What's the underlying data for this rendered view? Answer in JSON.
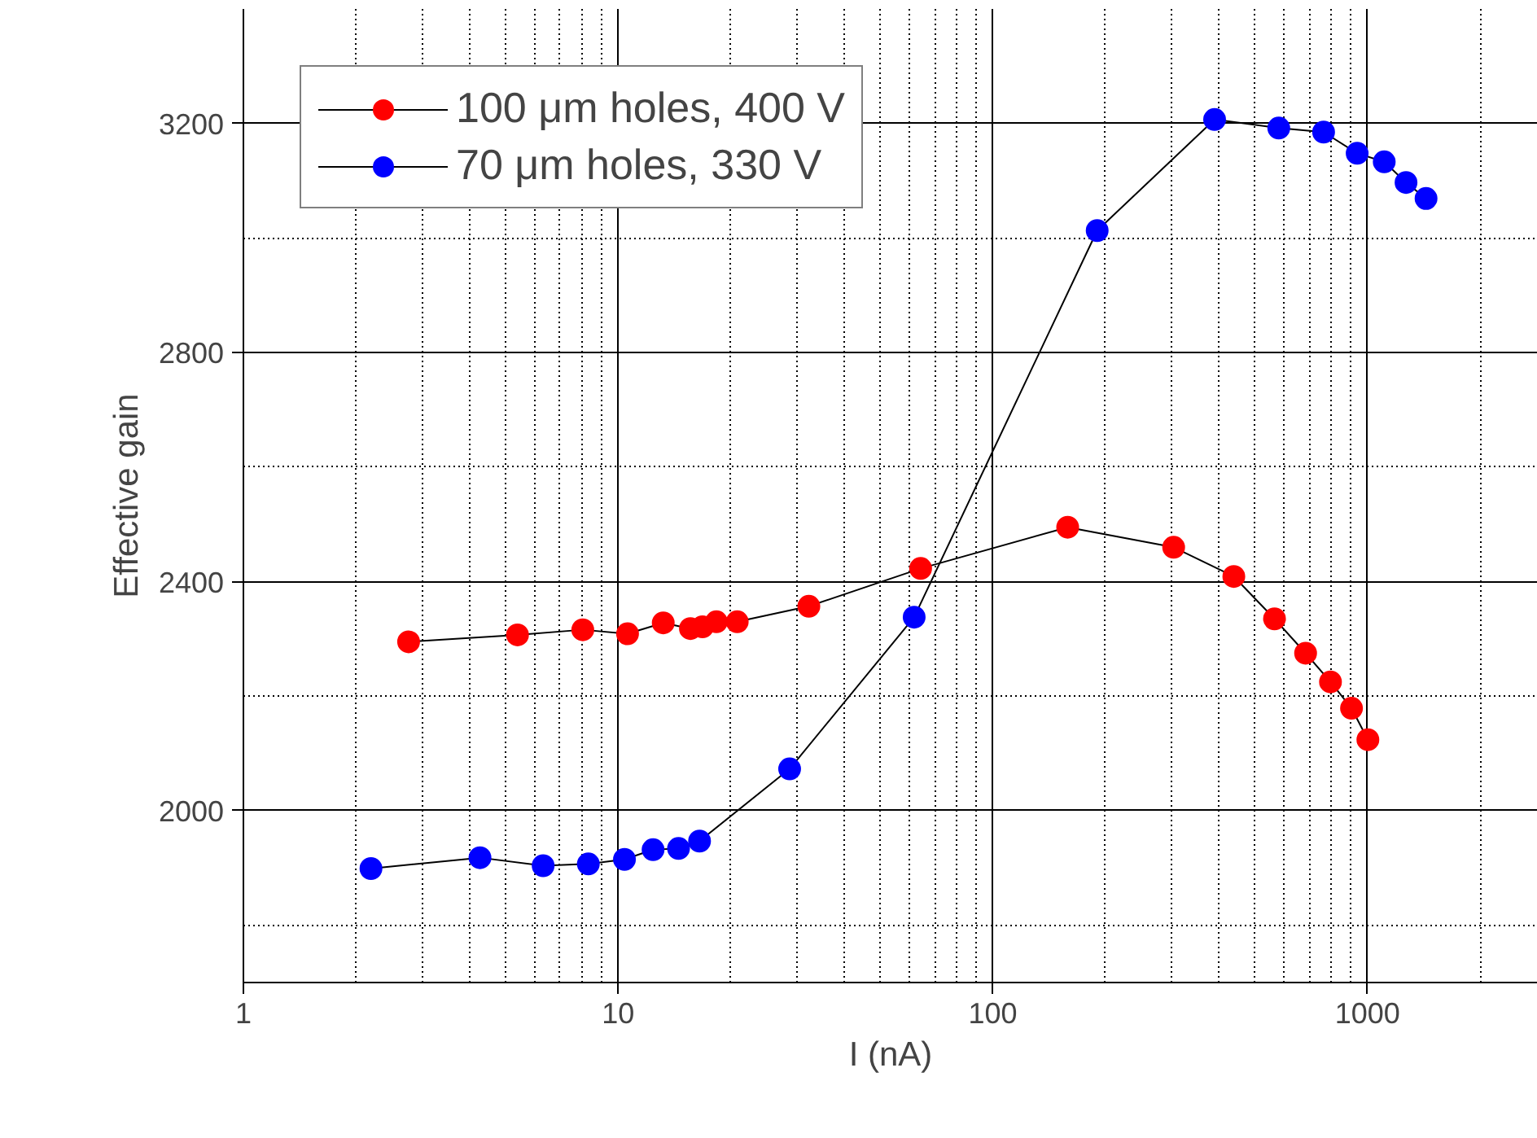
{
  "chart_data": {
    "type": "line",
    "xlabel": "I (nA)",
    "ylabel": "Effective gain",
    "log": "x",
    "xlim": [
      1,
      2850
    ],
    "ylim": [
      1700,
      3400
    ],
    "xticks": [
      1,
      {
        "value": 2,
        "label": null
      },
      {
        "value": 3,
        "label": null
      },
      {
        "value": 4,
        "label": null
      },
      {
        "value": 5,
        "label": null
      },
      {
        "value": 6,
        "label": null
      },
      {
        "value": 7,
        "label": null
      },
      {
        "value": 8,
        "label": null
      },
      {
        "value": 9,
        "label": null
      },
      10,
      {
        "value": 20,
        "label": null
      },
      {
        "value": 30,
        "label": null
      },
      {
        "value": 40,
        "label": null
      },
      {
        "value": 50,
        "label": null
      },
      {
        "value": 60,
        "label": null
      },
      {
        "value": 70,
        "label": null
      },
      {
        "value": 80,
        "label": null
      },
      {
        "value": 90,
        "label": null
      },
      100,
      {
        "value": 200,
        "label": null
      },
      {
        "value": 300,
        "label": null
      },
      {
        "value": 400,
        "label": null
      },
      {
        "value": 500,
        "label": null
      },
      {
        "value": 600,
        "label": null
      },
      {
        "value": 700,
        "label": null
      },
      {
        "value": 800,
        "label": null
      },
      {
        "value": 900,
        "label": null
      },
      1000,
      {
        "value": 2000,
        "label": null
      }
    ],
    "yticks": [
      {
        "value": 1800,
        "label": null
      },
      2000,
      {
        "value": 2200,
        "label": null
      },
      2400,
      {
        "value": 2600,
        "label": null
      },
      2800,
      {
        "value": 3000,
        "label": null
      },
      3200
    ],
    "grid": true,
    "legend": "top left",
    "marker": "circle",
    "line_style": "solid",
    "series": [
      {
        "name": "100 μm holes, 400 V",
        "color": "#ff0000",
        "x": [
          2.76,
          5.39,
          8.05,
          10.6,
          13.2,
          15.6,
          16.8,
          18.3,
          20.8,
          32.3,
          64.2,
          158.5,
          304,
          440,
          565,
          684,
          797,
          907,
          1003
        ],
        "values": [
          2295,
          2307,
          2316,
          2309,
          2328,
          2318,
          2321,
          2330,
          2330,
          2357,
          2423,
          2495,
          2460,
          2409,
          2335,
          2275,
          2225,
          2179,
          2124
        ]
      },
      {
        "name": "70 μm holes, 330 V",
        "color": "#0000ff",
        "x": [
          2.19,
          4.28,
          6.31,
          8.33,
          10.4,
          12.4,
          14.5,
          16.5,
          28.7,
          61.7,
          190,
          391,
          580,
          764,
          939,
          1109,
          1268,
          1434
        ],
        "values": [
          1899,
          1918,
          1904,
          1907,
          1915,
          1932,
          1934,
          1947,
          2073,
          2338,
          3013,
          3207,
          3192,
          3185,
          3148,
          3133,
          3097,
          3069
        ]
      }
    ]
  }
}
